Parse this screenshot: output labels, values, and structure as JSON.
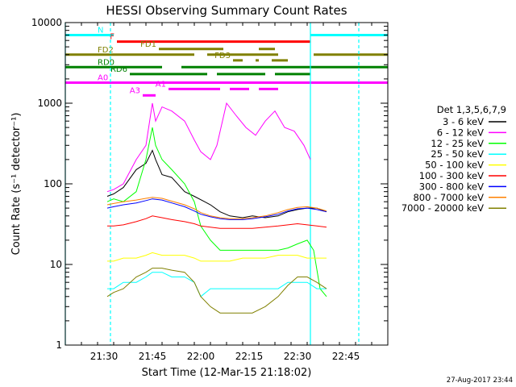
{
  "chart_data": {
    "type": "line",
    "title": "HESSI Observing Summary Count Rates",
    "xlabel": "Start Time (12-Mar-15 21:18:02)",
    "ylabel": "Count Rate (s⁻¹ detector⁻¹)",
    "ylog": true,
    "xlim": [
      "21:18",
      "22:58"
    ],
    "ylim": [
      1,
      10000
    ],
    "x_ticks": [
      "21:30",
      "21:45",
      "22:00",
      "22:15",
      "22:30",
      "22:45"
    ],
    "y_ticks": [
      "1",
      "10",
      "100",
      "1000",
      "10000"
    ],
    "timestamp": "27-Aug-2017 23:44",
    "legend_title": "Det 1,3,5,6,7,9",
    "legend_position": "right",
    "series": [
      {
        "name": "3 - 6 keV",
        "color": "#000000",
        "points": [
          [
            "21:31",
            70
          ],
          [
            "21:33",
            75
          ],
          [
            "21:36",
            90
          ],
          [
            "21:40",
            150
          ],
          [
            "21:43",
            180
          ],
          [
            "21:45",
            260
          ],
          [
            "21:46",
            200
          ],
          [
            "21:48",
            130
          ],
          [
            "21:51",
            120
          ],
          [
            "21:55",
            80
          ],
          [
            "21:58",
            70
          ],
          [
            "22:03",
            55
          ],
          [
            "22:06",
            45
          ],
          [
            "22:09",
            40
          ],
          [
            "22:13",
            38
          ],
          [
            "22:16",
            40
          ],
          [
            "22:20",
            38
          ],
          [
            "22:24",
            40
          ],
          [
            "22:27",
            45
          ],
          [
            "22:30",
            48
          ],
          [
            "22:33",
            50
          ],
          [
            "22:36",
            50
          ],
          [
            "22:39",
            45
          ]
        ]
      },
      {
        "name": "6 - 12 keV",
        "color": "#ff00ff",
        "points": [
          [
            "21:31",
            80
          ],
          [
            "21:33",
            85
          ],
          [
            "21:36",
            100
          ],
          [
            "21:40",
            200
          ],
          [
            "21:43",
            300
          ],
          [
            "21:45",
            1000
          ],
          [
            "21:46",
            600
          ],
          [
            "21:48",
            900
          ],
          [
            "21:51",
            800
          ],
          [
            "21:55",
            600
          ],
          [
            "21:58",
            350
          ],
          [
            "22:00",
            250
          ],
          [
            "22:03",
            200
          ],
          [
            "22:05",
            300
          ],
          [
            "22:08",
            1000
          ],
          [
            "22:11",
            700
          ],
          [
            "22:14",
            500
          ],
          [
            "22:17",
            400
          ],
          [
            "22:20",
            600
          ],
          [
            "22:23",
            800
          ],
          [
            "22:26",
            500
          ],
          [
            "22:29",
            450
          ],
          [
            "22:32",
            300
          ],
          [
            "22:34",
            200
          ]
        ]
      },
      {
        "name": "12 - 25 keV",
        "color": "#00ff00",
        "points": [
          [
            "21:31",
            60
          ],
          [
            "21:33",
            65
          ],
          [
            "21:36",
            60
          ],
          [
            "21:40",
            80
          ],
          [
            "21:43",
            200
          ],
          [
            "21:45",
            500
          ],
          [
            "21:46",
            300
          ],
          [
            "21:48",
            200
          ],
          [
            "21:51",
            150
          ],
          [
            "21:55",
            100
          ],
          [
            "21:58",
            60
          ],
          [
            "22:00",
            30
          ],
          [
            "22:03",
            20
          ],
          [
            "22:06",
            15
          ],
          [
            "22:09",
            15
          ],
          [
            "22:13",
            15
          ],
          [
            "22:16",
            15
          ],
          [
            "22:20",
            15
          ],
          [
            "22:24",
            15
          ],
          [
            "22:27",
            16
          ],
          [
            "22:30",
            18
          ],
          [
            "22:33",
            20
          ],
          [
            "22:35",
            15
          ],
          [
            "22:37",
            5
          ],
          [
            "22:39",
            4
          ]
        ]
      },
      {
        "name": "25 - 50 keV",
        "color": "#00ffff",
        "points": [
          [
            "21:31",
            5
          ],
          [
            "21:33",
            5
          ],
          [
            "21:36",
            6
          ],
          [
            "21:40",
            6
          ],
          [
            "21:43",
            7
          ],
          [
            "21:45",
            8
          ],
          [
            "21:48",
            8
          ],
          [
            "21:51",
            7
          ],
          [
            "21:55",
            7
          ],
          [
            "21:58",
            6
          ],
          [
            "22:00",
            4
          ],
          [
            "22:03",
            5
          ],
          [
            "22:06",
            5
          ],
          [
            "22:09",
            5
          ],
          [
            "22:13",
            5
          ],
          [
            "22:16",
            5
          ],
          [
            "22:20",
            5
          ],
          [
            "22:24",
            5
          ],
          [
            "22:27",
            6
          ],
          [
            "22:30",
            6
          ],
          [
            "22:33",
            6
          ],
          [
            "22:36",
            5
          ],
          [
            "22:39",
            5
          ]
        ]
      },
      {
        "name": "50 - 100 keV",
        "color": "#ffff00",
        "points": [
          [
            "21:31",
            11
          ],
          [
            "21:33",
            11
          ],
          [
            "21:36",
            12
          ],
          [
            "21:40",
            12
          ],
          [
            "21:43",
            13
          ],
          [
            "21:45",
            14
          ],
          [
            "21:48",
            13
          ],
          [
            "21:51",
            13
          ],
          [
            "21:55",
            13
          ],
          [
            "21:58",
            12
          ],
          [
            "22:00",
            11
          ],
          [
            "22:03",
            11
          ],
          [
            "22:06",
            11
          ],
          [
            "22:09",
            11
          ],
          [
            "22:13",
            12
          ],
          [
            "22:16",
            12
          ],
          [
            "22:20",
            12
          ],
          [
            "22:24",
            13
          ],
          [
            "22:27",
            13
          ],
          [
            "22:30",
            13
          ],
          [
            "22:33",
            12
          ],
          [
            "22:36",
            12
          ],
          [
            "22:39",
            12
          ]
        ]
      },
      {
        "name": "100 - 300 keV",
        "color": "#ff0000",
        "points": [
          [
            "21:31",
            30
          ],
          [
            "21:33",
            30
          ],
          [
            "21:36",
            31
          ],
          [
            "21:40",
            34
          ],
          [
            "21:43",
            37
          ],
          [
            "21:45",
            40
          ],
          [
            "21:48",
            38
          ],
          [
            "21:51",
            36
          ],
          [
            "21:55",
            34
          ],
          [
            "21:58",
            32
          ],
          [
            "22:00",
            30
          ],
          [
            "22:03",
            29
          ],
          [
            "22:06",
            28
          ],
          [
            "22:09",
            28
          ],
          [
            "22:13",
            28
          ],
          [
            "22:16",
            28
          ],
          [
            "22:20",
            29
          ],
          [
            "22:24",
            30
          ],
          [
            "22:27",
            31
          ],
          [
            "22:30",
            32
          ],
          [
            "22:33",
            31
          ],
          [
            "22:36",
            30
          ],
          [
            "22:39",
            29
          ]
        ]
      },
      {
        "name": "300 - 800 keV",
        "color": "#0000ff",
        "points": [
          [
            "21:31",
            50
          ],
          [
            "21:33",
            52
          ],
          [
            "21:36",
            55
          ],
          [
            "21:40",
            58
          ],
          [
            "21:43",
            62
          ],
          [
            "21:45",
            65
          ],
          [
            "21:48",
            63
          ],
          [
            "21:51",
            58
          ],
          [
            "21:55",
            52
          ],
          [
            "21:58",
            46
          ],
          [
            "22:00",
            42
          ],
          [
            "22:03",
            39
          ],
          [
            "22:06",
            37
          ],
          [
            "22:09",
            36
          ],
          [
            "22:13",
            36
          ],
          [
            "22:16",
            37
          ],
          [
            "22:20",
            39
          ],
          [
            "22:24",
            42
          ],
          [
            "22:27",
            46
          ],
          [
            "22:30",
            49
          ],
          [
            "22:33",
            50
          ],
          [
            "22:36",
            48
          ],
          [
            "22:39",
            45
          ]
        ]
      },
      {
        "name": "800 - 7000 keV",
        "color": "#ff8000",
        "points": [
          [
            "21:31",
            55
          ],
          [
            "21:33",
            57
          ],
          [
            "21:36",
            60
          ],
          [
            "21:40",
            63
          ],
          [
            "21:43",
            66
          ],
          [
            "21:45",
            68
          ],
          [
            "21:48",
            66
          ],
          [
            "21:51",
            61
          ],
          [
            "21:55",
            55
          ],
          [
            "21:58",
            49
          ],
          [
            "22:00",
            44
          ],
          [
            "22:03",
            40
          ],
          [
            "22:06",
            38
          ],
          [
            "22:09",
            37
          ],
          [
            "22:13",
            37
          ],
          [
            "22:16",
            38
          ],
          [
            "22:20",
            40
          ],
          [
            "22:24",
            44
          ],
          [
            "22:27",
            48
          ],
          [
            "22:30",
            51
          ],
          [
            "22:33",
            52
          ],
          [
            "22:36",
            50
          ],
          [
            "22:39",
            46
          ]
        ]
      },
      {
        "name": "7000 - 20000 keV",
        "color": "#808000",
        "points": [
          [
            "21:31",
            4
          ],
          [
            "21:33",
            4.5
          ],
          [
            "21:36",
            5
          ],
          [
            "21:40",
            7
          ],
          [
            "21:43",
            8
          ],
          [
            "21:45",
            9
          ],
          [
            "21:48",
            9
          ],
          [
            "21:51",
            8.5
          ],
          [
            "21:55",
            8
          ],
          [
            "21:58",
            6
          ],
          [
            "22:00",
            4
          ],
          [
            "22:03",
            3
          ],
          [
            "22:06",
            2.5
          ],
          [
            "22:09",
            2.5
          ],
          [
            "22:13",
            2.5
          ],
          [
            "22:16",
            2.5
          ],
          [
            "22:20",
            3
          ],
          [
            "22:24",
            4
          ],
          [
            "22:27",
            5.5
          ],
          [
            "22:30",
            7
          ],
          [
            "22:33",
            7
          ],
          [
            "22:36",
            6
          ],
          [
            "22:39",
            5
          ]
        ]
      }
    ],
    "flag_bars": [
      {
        "label": "N",
        "color": "#00ffff",
        "level": 7000,
        "segments": [
          [
            "21:18",
            "21:33"
          ],
          [
            "22:34",
            "22:58"
          ]
        ]
      },
      {
        "label": "F",
        "color": "#ff0000",
        "level": 5800,
        "segments": [
          [
            "21:34",
            "22:34"
          ]
        ]
      },
      {
        "label": "FD1",
        "color": "#808000",
        "level": 4700,
        "segments": [
          [
            "21:47",
            "22:07"
          ],
          [
            "22:18",
            "22:23"
          ]
        ]
      },
      {
        "label": "FD2",
        "color": "#808000",
        "level": 4000,
        "segments": [
          [
            "21:18",
            "21:58"
          ],
          [
            "22:02",
            "22:24"
          ],
          [
            "22:35",
            "22:58"
          ]
        ]
      },
      {
        "label": "FD3",
        "color": "#808000",
        "level": 3400,
        "segments": [
          [
            "22:10",
            "22:13"
          ],
          [
            "22:17",
            "22:18"
          ],
          [
            "22:22",
            "22:27"
          ]
        ]
      },
      {
        "label": "RD0",
        "color": "#008000",
        "level": 2800,
        "segments": [
          [
            "21:18",
            "21:48"
          ],
          [
            "21:54",
            "22:58"
          ]
        ]
      },
      {
        "label": "RD6",
        "color": "#008000",
        "level": 2300,
        "segments": [
          [
            "21:38",
            "22:02"
          ],
          [
            "22:05",
            "22:20"
          ],
          [
            "22:23",
            "22:34"
          ]
        ]
      },
      {
        "label": "A0",
        "color": "#ff00ff",
        "level": 1800,
        "segments": [
          [
            "21:18",
            "22:58"
          ]
        ]
      },
      {
        "label": "A1",
        "color": "#ff00ff",
        "level": 1500,
        "segments": [
          [
            "21:50",
            "22:06"
          ],
          [
            "22:09",
            "22:15"
          ],
          [
            "22:18",
            "22:24"
          ]
        ]
      },
      {
        "label": "A3",
        "color": "#ff00ff",
        "level": 1250,
        "segments": [
          [
            "21:42",
            "21:46"
          ]
        ]
      }
    ],
    "vertical_lines": [
      {
        "time": "21:18",
        "color": "#00ffff",
        "style": "solid"
      },
      {
        "time": "21:32",
        "color": "#00ffff",
        "style": "dashed"
      },
      {
        "time": "22:34",
        "color": "#00ffff",
        "style": "solid"
      },
      {
        "time": "22:49",
        "color": "#00ffff",
        "style": "dashed"
      }
    ]
  }
}
